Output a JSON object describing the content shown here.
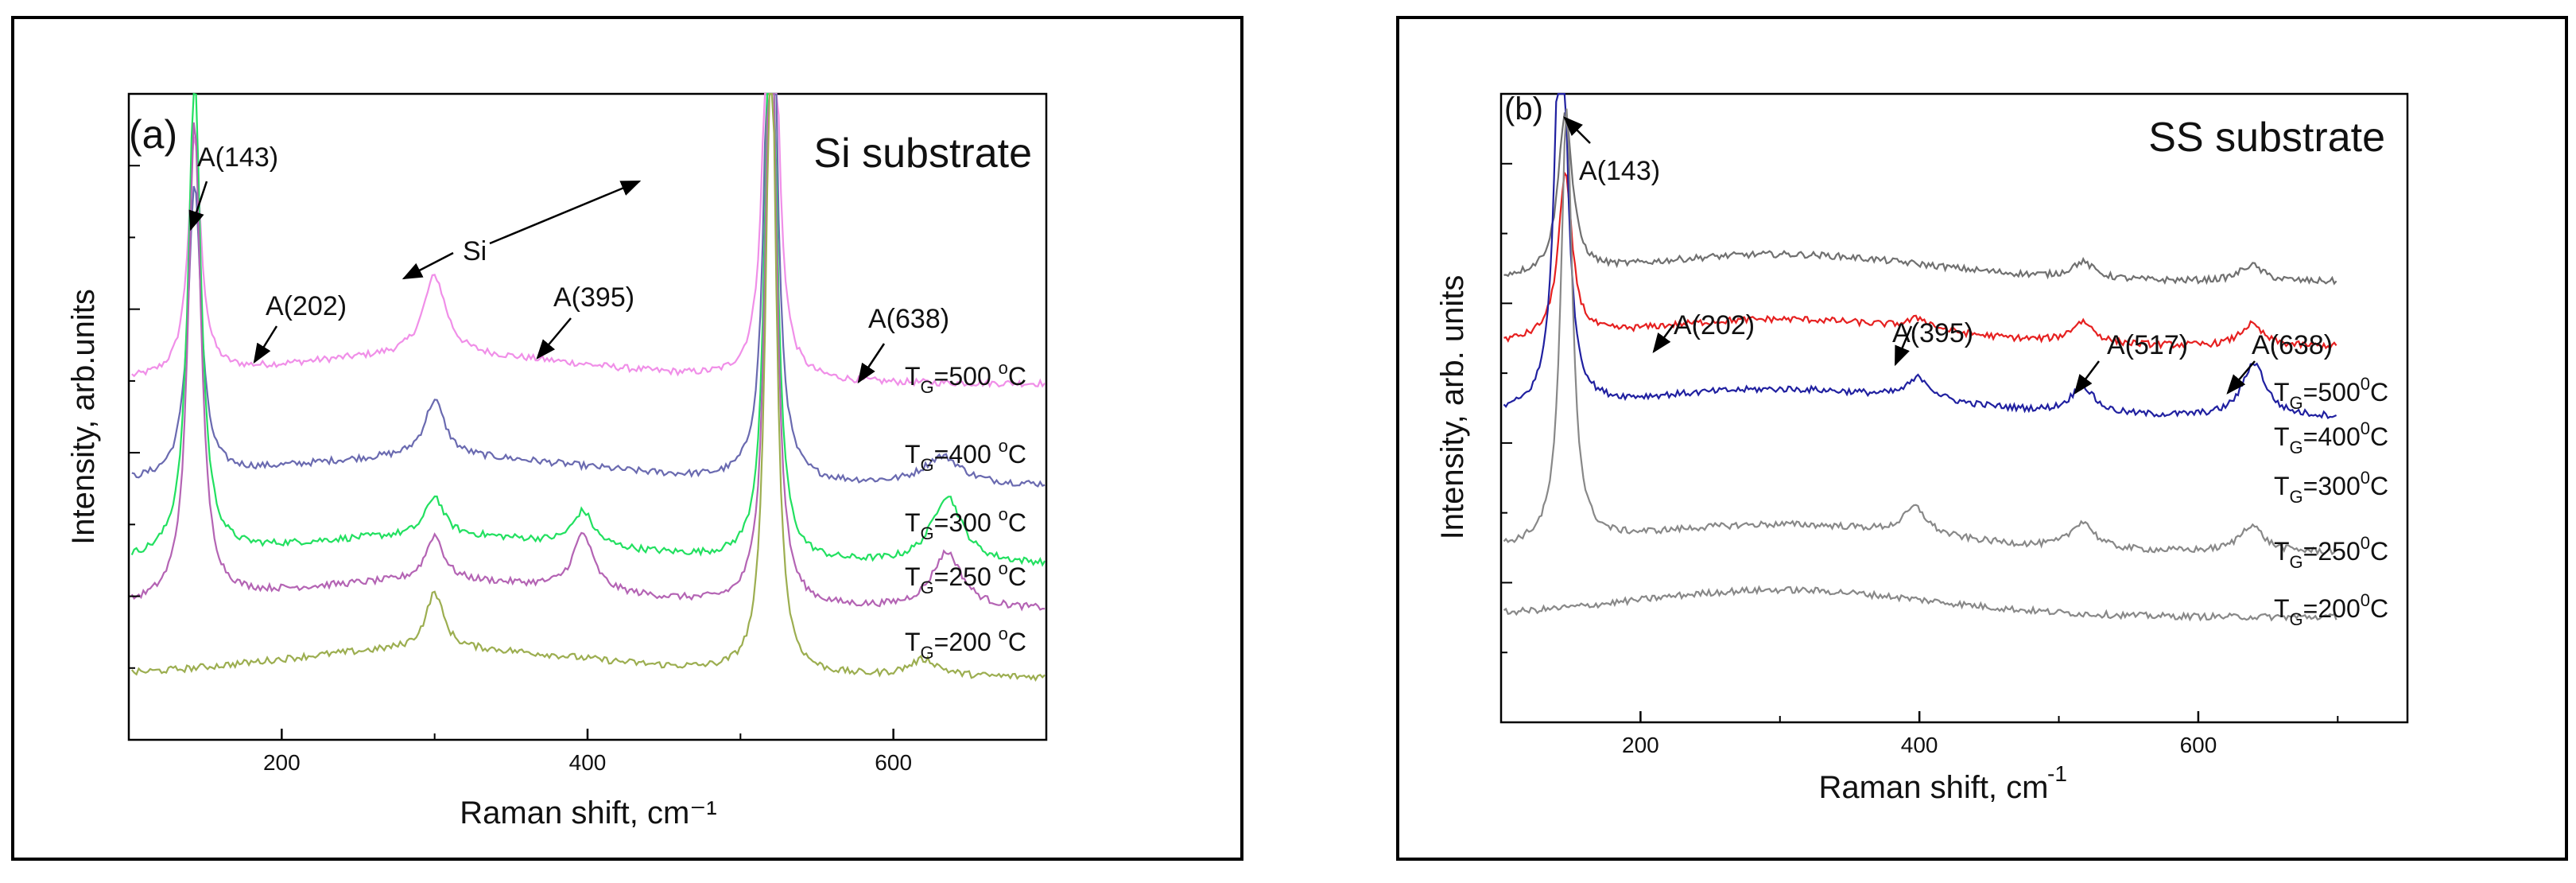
{
  "figure": {
    "panels": [
      "a",
      "b"
    ]
  },
  "chart_data": [
    {
      "type": "line",
      "panel_label": "(a)",
      "title": "Si substrate",
      "xlabel": "Raman shift, cm⁻¹",
      "ylabel": "Intensity, arb.units",
      "xlim": [
        100,
        700
      ],
      "x_ticks": [
        200,
        400,
        600
      ],
      "x_tick_labels": [
        "200",
        "400",
        "600"
      ],
      "y_ticks_labeled": false,
      "series": [
        {
          "name": "T_G=500 °C",
          "label_main": "T",
          "label_sub": "G",
          "label_eq": "=500 ",
          "label_sup": "o",
          "label_unit": "C",
          "color": "#f08fe8",
          "baseline": 0.56,
          "peaks": [
            [
              143,
              0.42,
              5
            ],
            [
              300,
              0.14,
              9
            ],
            [
              520,
              1.2,
              4
            ]
          ]
        },
        {
          "name": "T_G=400 °C",
          "label_main": "T",
          "label_sub": "G",
          "label_eq": "=400 ",
          "label_sup": "o",
          "label_unit": "C",
          "color": "#6a6ab0",
          "baseline": 0.38,
          "peaks": [
            [
              143,
              0.52,
              5
            ],
            [
              300,
              0.1,
              8
            ],
            [
              520,
              1.2,
              4
            ],
            [
              632,
              0.05,
              15
            ]
          ]
        },
        {
          "name": "T_G=300 °C",
          "label_main": "T",
          "label_sub": "G",
          "label_eq": "=300 ",
          "label_sup": "o",
          "label_unit": "C",
          "color": "#22e060",
          "baseline": 0.24,
          "peaks": [
            [
              143,
              0.85,
              5
            ],
            [
              300,
              0.07,
              7
            ],
            [
              397,
              0.06,
              8
            ],
            [
              520,
              1.2,
              4
            ],
            [
              635,
              0.12,
              12
            ]
          ]
        },
        {
          "name": "T_G=250 °C",
          "label_main": "T",
          "label_sub": "G",
          "label_eq": "=250 ",
          "label_sup": "o",
          "label_unit": "C",
          "color": "#b464b4",
          "baseline": 0.16,
          "peaks": [
            [
              143,
              0.85,
              5
            ],
            [
              300,
              0.08,
              7
            ],
            [
              397,
              0.1,
              8
            ],
            [
              520,
              1.2,
              4
            ],
            [
              635,
              0.1,
              12
            ]
          ]
        },
        {
          "name": "T_G=200 °C",
          "label_main": "T",
          "label_sub": "G",
          "label_eq": "=200 ",
          "label_sup": "o",
          "label_unit": "C",
          "color": "#9cae50",
          "baseline": 0.04,
          "peaks": [
            [
              300,
              0.1,
              7
            ],
            [
              520,
              1.2,
              4
            ],
            [
              620,
              0.03,
              12
            ]
          ]
        }
      ],
      "annotations": [
        {
          "text": "A(143)",
          "target": [
            143,
            "A(143)"
          ]
        },
        {
          "text": "A(202)",
          "target": [
            202,
            "A(202)"
          ]
        },
        {
          "text": "Si",
          "target": [
            300,
            "Si"
          ]
        },
        {
          "text": "A(395)",
          "target": [
            395,
            "A(395)"
          ]
        },
        {
          "text": "A(638)",
          "target": [
            638,
            "A(638)"
          ]
        }
      ]
    },
    {
      "type": "line",
      "panel_label": "(b)",
      "title": "SS substrate",
      "xlabel": "Raman shift, cm",
      "xlabel_sup": "-1",
      "ylabel": "Intensity, arb. units",
      "xlim": [
        100,
        750
      ],
      "x_ticks": [
        200,
        400,
        600
      ],
      "x_tick_labels": [
        "200",
        "400",
        "600"
      ],
      "y_ticks_labeled": false,
      "series": [
        {
          "name": "T_G=500°C",
          "label_main": "T",
          "label_sub": "G",
          "label_eq": "=500",
          "label_sup": "0",
          "label_unit": "C",
          "color": "#707070",
          "baseline": 0.7,
          "peaks": [
            [
              146,
              0.3,
              6
            ],
            [
              517,
              0.03,
              10
            ],
            [
              638,
              0.03,
              10
            ]
          ]
        },
        {
          "name": "T_G=400°C",
          "label_main": "T",
          "label_sub": "G",
          "label_eq": "=400",
          "label_sup": "0",
          "label_unit": "C",
          "color": "#e62020",
          "baseline": 0.58,
          "peaks": [
            [
              146,
              0.3,
              6
            ],
            [
              400,
              0.02,
              10
            ],
            [
              517,
              0.04,
              10
            ],
            [
              638,
              0.04,
              10
            ]
          ]
        },
        {
          "name": "T_G=300°C",
          "label_main": "T",
          "label_sub": "G",
          "label_eq": "=300",
          "label_sup": "0",
          "label_unit": "C",
          "color": "#2020a0",
          "baseline": 0.45,
          "peaks": [
            [
              143,
              0.85,
              5
            ],
            [
              400,
              0.04,
              10
            ],
            [
              517,
              0.05,
              10
            ],
            [
              640,
              0.1,
              10
            ]
          ]
        },
        {
          "name": "T_G=250°C",
          "label_main": "T",
          "label_sub": "G",
          "label_eq": "=250",
          "label_sup": "0",
          "label_unit": "C",
          "color": "#888888",
          "baseline": 0.2,
          "peaks": [
            [
              147,
              0.8,
              5
            ],
            [
              397,
              0.05,
              10
            ],
            [
              517,
              0.05,
              10
            ],
            [
              638,
              0.05,
              10
            ]
          ]
        },
        {
          "name": "T_G=200°C",
          "label_main": "T",
          "label_sub": "G",
          "label_eq": "=200",
          "label_sup": "0",
          "label_unit": "C",
          "color": "#888888",
          "baseline": 0.08,
          "peaks": []
        }
      ],
      "annotations": [
        {
          "text": "A(143)"
        },
        {
          "text": "A(202)"
        },
        {
          "text": "A(395)"
        },
        {
          "text": "A(517)"
        },
        {
          "text": "A(638)"
        }
      ]
    }
  ]
}
